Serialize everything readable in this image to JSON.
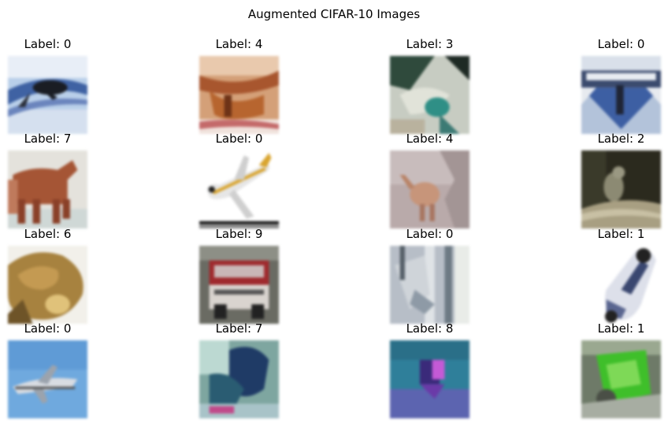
{
  "figure": {
    "title": "Augmented CIFAR-10 Images"
  },
  "images": [
    {
      "label": "Label: 0",
      "icon": "airplane-image"
    },
    {
      "label": "Label: 4",
      "icon": "deer-image"
    },
    {
      "label": "Label: 3",
      "icon": "cat-image"
    },
    {
      "label": "Label: 0",
      "icon": "airplane-image"
    },
    {
      "label": "Label: 7",
      "icon": "horse-image"
    },
    {
      "label": "Label: 0",
      "icon": "airplane-image"
    },
    {
      "label": "Label: 4",
      "icon": "deer-image"
    },
    {
      "label": "Label: 2",
      "icon": "bird-image"
    },
    {
      "label": "Label: 6",
      "icon": "frog-image"
    },
    {
      "label": "Label: 9",
      "icon": "truck-image"
    },
    {
      "label": "Label: 0",
      "icon": "airplane-image"
    },
    {
      "label": "Label: 1",
      "icon": "automobile-image"
    },
    {
      "label": "Label: 0",
      "icon": "airplane-image"
    },
    {
      "label": "Label: 7",
      "icon": "horse-image"
    },
    {
      "label": "Label: 8",
      "icon": "ship-image"
    },
    {
      "label": "Label: 1",
      "icon": "automobile-image"
    }
  ]
}
